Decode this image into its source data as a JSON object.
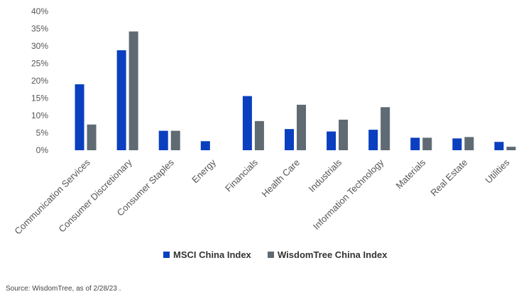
{
  "chart_data": {
    "type": "bar",
    "title": "",
    "xlabel": "",
    "ylabel": "",
    "ylim": [
      0,
      40
    ],
    "y_ticks": [
      "0%",
      "5%",
      "10%",
      "15%",
      "20%",
      "25%",
      "30%",
      "35%",
      "40%"
    ],
    "y_tick_values": [
      0,
      5,
      10,
      15,
      20,
      25,
      30,
      35,
      40
    ],
    "grid": false,
    "legend": "bottom-center",
    "categories": [
      "Communication Services",
      "Consumer Discretionary",
      "Consumer Staples",
      "Energy",
      "Financials",
      "Health Care",
      "Industrials",
      "Information Technology",
      "Materials",
      "Real Estate",
      "Utilities"
    ],
    "series": [
      {
        "name": "MSCI China Index",
        "color": "#0a3fbf",
        "values": [
          19.0,
          28.8,
          5.6,
          2.6,
          15.6,
          6.1,
          5.4,
          5.9,
          3.6,
          3.4,
          2.4
        ]
      },
      {
        "name": "WisdomTree China Index",
        "color": "#5f6a73",
        "values": [
          7.4,
          34.2,
          5.6,
          0,
          8.4,
          13.1,
          8.8,
          12.4,
          3.6,
          3.8,
          1.0
        ]
      }
    ]
  },
  "source_note": "Source: WisdomTree, as of 2/28/23 ."
}
